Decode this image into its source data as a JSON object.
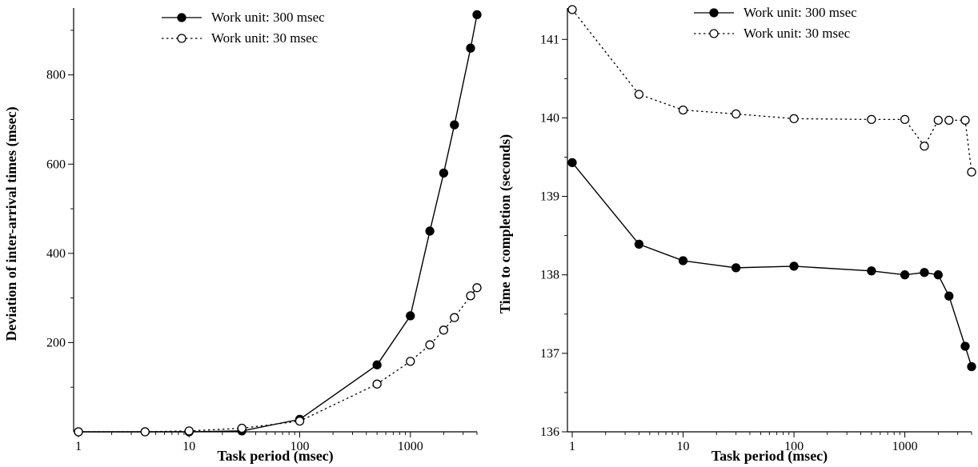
{
  "chart_data": [
    {
      "type": "line",
      "title": "",
      "xlabel": "Task period (msec)",
      "ylabel": "Deviation of inter-arrival times (msec)",
      "xscale": "log",
      "xlim": [
        1,
        4000
      ],
      "ylim": [
        0,
        950
      ],
      "x_ticks": [
        1,
        10,
        100,
        1000
      ],
      "x_tick_labels": [
        "1",
        "10",
        "100",
        "1000"
      ],
      "y_ticks": [
        200,
        400,
        600,
        800
      ],
      "y_tick_labels": [
        "200",
        "400",
        "600",
        "800"
      ],
      "legend_position": "top-center",
      "series": [
        {
          "name": "Work unit: 300 msec",
          "marker": "filled-circle",
          "line": "solid",
          "x": [
            1,
            4,
            10,
            30,
            100,
            500,
            1000,
            1500,
            2000,
            2500,
            3500,
            4000
          ],
          "y": [
            0,
            0,
            0,
            2,
            28,
            150,
            260,
            450,
            580,
            688,
            860,
            935
          ]
        },
        {
          "name": "Work unit: 30 msec",
          "marker": "open-circle",
          "line": "dotted",
          "x": [
            1,
            4,
            10,
            30,
            100,
            500,
            1000,
            1500,
            2000,
            2500,
            3500,
            4000
          ],
          "y": [
            0,
            0,
            2,
            8,
            24,
            107,
            158,
            195,
            228,
            256,
            305,
            323
          ]
        }
      ]
    },
    {
      "type": "line",
      "title": "",
      "xlabel": "Task period (msec)",
      "ylabel": "Time to completion (seconds)",
      "xscale": "log",
      "xlim": [
        1,
        4000
      ],
      "ylim": [
        136,
        141.4
      ],
      "x_ticks": [
        1,
        10,
        100,
        1000
      ],
      "x_tick_labels": [
        "1",
        "10",
        "100",
        "1000"
      ],
      "y_ticks": [
        136,
        137,
        138,
        139,
        140,
        141
      ],
      "y_tick_labels": [
        "136",
        "137",
        "138",
        "139",
        "140",
        "141"
      ],
      "legend_position": "top-right",
      "series": [
        {
          "name": "Work unit: 300 msec",
          "marker": "filled-circle",
          "line": "solid",
          "x": [
            1,
            4,
            10,
            30,
            100,
            500,
            1000,
            1500,
            2000,
            2500,
            3500,
            4000
          ],
          "y": [
            139.43,
            138.39,
            138.18,
            138.09,
            138.11,
            138.05,
            138.0,
            138.03,
            138.0,
            137.73,
            137.09,
            136.83
          ]
        },
        {
          "name": "Work unit: 30 msec",
          "marker": "open-circle",
          "line": "dotted",
          "x": [
            1,
            4,
            10,
            30,
            100,
            500,
            1000,
            1500,
            2000,
            2500,
            3500,
            4000
          ],
          "y": [
            141.38,
            140.3,
            140.1,
            140.05,
            139.99,
            139.98,
            139.98,
            139.64,
            139.97,
            139.97,
            139.97,
            139.31
          ]
        }
      ]
    }
  ]
}
